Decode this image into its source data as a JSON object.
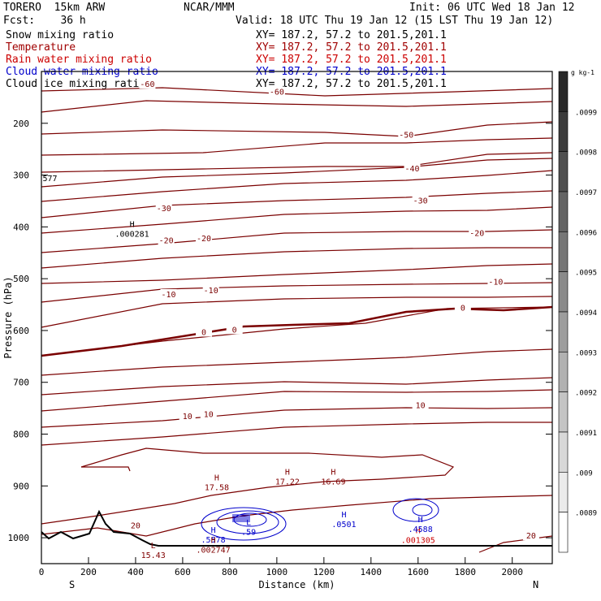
{
  "header": {
    "model": "TORERO  15km ARW",
    "forecast": "Fcst:    36 h",
    "center": "NCAR/MMM",
    "init": "Init: 06 UTC Wed 18 Jan 12",
    "valid": "Valid: 18 UTC Thu 19 Jan 12 (15 LST Thu 19 Jan 12)"
  },
  "fields": [
    {
      "name": "Snow mixing ratio",
      "xy": "XY= 187.2, 57.2 to 201.5,201.1",
      "color": "#000000"
    },
    {
      "name": "Temperature",
      "xy": "XY= 187.2, 57.2 to 201.5,201.1",
      "color": "#b00000"
    },
    {
      "name": "Rain water mixing ratio",
      "xy": "XY= 187.2, 57.2 to 201.5,201.1",
      "color": "#cc0000"
    },
    {
      "name": "Cloud water mixing ratio",
      "xy": "XY= 187.2, 57.2 to 201.5,201.1",
      "color": "#0000cc"
    },
    {
      "name": "Cloud ice mixing ratio",
      "xy": "XY= 187.2, 57.2 to 201.5,201.1",
      "color": "#000000"
    }
  ],
  "colorbar": {
    "unit": "g kg-1",
    "labels": [
      ".0099",
      ".0098",
      ".0097",
      ".0096",
      ".0095",
      ".0094",
      ".0093",
      ".0092",
      ".0091",
      ".009",
      ".0089"
    ]
  },
  "chart_data": {
    "type": "contour",
    "xlabel": "Distance (km)",
    "ylabel": "Pressure (hPa)",
    "xlim": [
      0,
      2170
    ],
    "ylim": [
      1050,
      100
    ],
    "x_ticks": [
      0,
      200,
      400,
      600,
      800,
      1000,
      1200,
      1400,
      1600,
      1800,
      2000
    ],
    "y_ticks": [
      200,
      300,
      400,
      500,
      600,
      700,
      800,
      900,
      1000
    ],
    "x_end_labels": {
      "left": "S",
      "right": "N"
    },
    "temperature_contour_labels": [
      {
        "value": "-60",
        "x": 450,
        "p": 125
      },
      {
        "value": "-60",
        "x": 1000,
        "p": 140
      },
      {
        "value": "-50",
        "x": 1550,
        "p": 223
      },
      {
        "value": "-40",
        "x": 1575,
        "p": 288
      },
      {
        "value": "-30",
        "x": 520,
        "p": 365
      },
      {
        "value": "-30",
        "x": 1610,
        "p": 350
      },
      {
        "value": "-20",
        "x": 530,
        "p": 427
      },
      {
        "value": "-20",
        "x": 690,
        "p": 423
      },
      {
        "value": "-20",
        "x": 1850,
        "p": 413
      },
      {
        "value": "-10",
        "x": 540,
        "p": 531
      },
      {
        "value": "-10",
        "x": 720,
        "p": 523
      },
      {
        "value": "-10",
        "x": 1930,
        "p": 507
      },
      {
        "value": "0",
        "x": 690,
        "p": 604
      },
      {
        "value": "0",
        "x": 820,
        "p": 599
      },
      {
        "value": "0",
        "x": 1790,
        "p": 557
      },
      {
        "value": "10",
        "x": 620,
        "p": 766
      },
      {
        "value": "10",
        "x": 710,
        "p": 762
      },
      {
        "value": "10",
        "x": 1610,
        "p": 745
      },
      {
        "value": "20",
        "x": 400,
        "p": 977
      },
      {
        "value": "20",
        "x": 2080,
        "p": 997
      }
    ],
    "extrema": [
      {
        "type": "H",
        "value": ".000281",
        "x": 385,
        "p": 405,
        "color": "#000000"
      },
      {
        "type": "H",
        "value": "17.58",
        "x": 745,
        "p": 894,
        "color": "#800000"
      },
      {
        "type": "H",
        "value": "17.22",
        "x": 1045,
        "p": 883,
        "color": "#800000"
      },
      {
        "type": "H",
        "value": "16.69",
        "x": 1240,
        "p": 883,
        "color": "#800000"
      },
      {
        "type": "H",
        "value": ".0501",
        "x": 1285,
        "p": 965,
        "color": "#0000cc"
      },
      {
        "type": "H",
        "value": ".5578",
        "x": 730,
        "p": 995,
        "color": "#0000cc"
      },
      {
        "type": "L",
        "value": ".59",
        "x": 880,
        "p": 980,
        "color": "#0000cc"
      },
      {
        "type": "H",
        "value": ".002747",
        "x": 730,
        "p": 1015,
        "color": "#800000"
      },
      {
        "type": "H",
        "value": ".001305",
        "x": 1600,
        "p": 996,
        "color": "#cc0000"
      },
      {
        "type": "H",
        "value": ".4588",
        "x": 1610,
        "p": 975,
        "color": "#0000cc"
      },
      {
        "type": "L",
        "value": "15.43",
        "x": 475,
        "p": 1025,
        "color": "#800000"
      }
    ],
    "edge_labels": [
      {
        "value": "577",
        "x": 5,
        "p": 305
      }
    ]
  }
}
